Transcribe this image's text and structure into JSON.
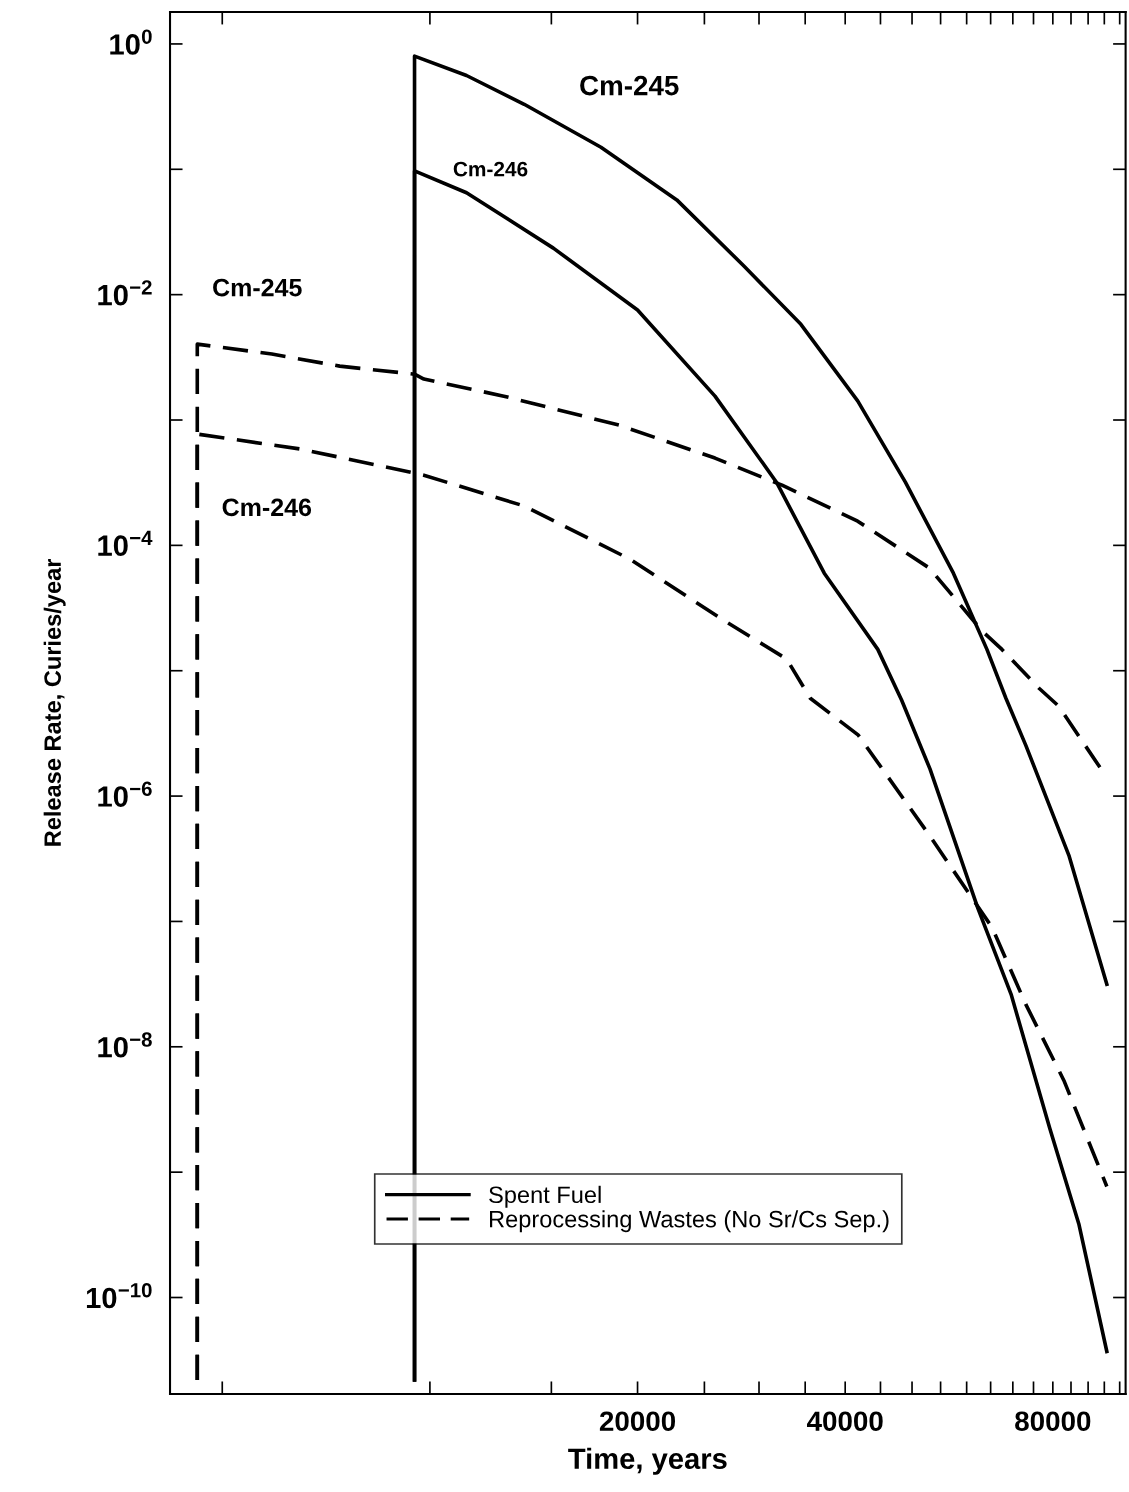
{
  "chart_data": {
    "type": "line",
    "xlabel": "Time, years",
    "ylabel": "Release Rate, Curies/year",
    "log": "xy",
    "grid": false,
    "legend": "bottom",
    "marker": "none",
    "xlim": [
      4200,
      102000
    ],
    "ylim": [
      1.7e-11,
      1.8
    ],
    "xticks": [
      {
        "value": 5000,
        "label": null
      },
      {
        "value": 10000,
        "label": null
      },
      {
        "value": 15000,
        "label": null
      },
      20000,
      {
        "value": 25000,
        "label": null
      },
      {
        "value": 30000,
        "label": null
      },
      {
        "value": 35000,
        "label": null
      },
      40000,
      {
        "value": 45000,
        "label": null
      },
      {
        "value": 50000,
        "label": null
      },
      {
        "value": 55000,
        "label": null
      },
      {
        "value": 60000,
        "label": null
      },
      {
        "value": 65000,
        "label": null
      },
      {
        "value": 70000,
        "label": null
      },
      {
        "value": 75000,
        "label": null
      },
      80000,
      {
        "value": 85000,
        "label": null
      },
      {
        "value": 90000,
        "label": null
      },
      {
        "value": 95000,
        "label": null
      },
      {
        "value": 100000,
        "label": null
      }
    ],
    "yticks": [
      {
        "value": 1,
        "label": "10$^{0}$"
      },
      {
        "value": 0.1,
        "label": null
      },
      {
        "value": 0.01,
        "label": "10$^{−2}$"
      },
      {
        "value": 0.001,
        "label": null
      },
      {
        "value": 0.0001,
        "label": "10$^{−4}$"
      },
      {
        "value": 1e-05,
        "label": null
      },
      {
        "value": 1e-06,
        "label": "10$^{−6}$"
      },
      {
        "value": 1e-07,
        "label": null
      },
      {
        "value": 1e-08,
        "label": "10$^{−8}$"
      },
      {
        "value": 1e-09,
        "label": null
      },
      {
        "value": 1e-10,
        "label": "10$^{−10}$"
      }
    ],
    "series": [
      {
        "name": "Spent Fuel",
        "color": "#000000",
        "line_style": "solid",
        "x": [
          9500,
          9500,
          11300,
          13700,
          17700,
          22800,
          28500,
          34500,
          41700,
          48900,
          57400,
          64200,
          68400,
          73100,
          84400,
          95800
        ],
        "values": [
          2.2e-11,
          0.8,
          0.56,
          0.33,
          0.15,
          0.057,
          0.017,
          0.0058,
          0.00142,
          0.000319,
          6e-05,
          1.48e-05,
          6.03e-06,
          2.54e-06,
          3.37e-07,
          3.15e-08
        ]
      },
      {
        "color": "#000000",
        "line_style": "solid",
        "x": [
          9500,
          9500,
          11300,
          15100,
          20000,
          25900,
          31800,
          37300,
          44600,
          48300,
          53100,
          62300,
          69600,
          79200,
          87300,
          95800
        ],
        "values": [
          2.2e-11,
          0.097,
          0.065,
          0.0235,
          0.00754,
          0.00155,
          0.000319,
          6e-05,
          1.48e-05,
          5.82e-06,
          1.64e-06,
          1.27e-07,
          2.62e-08,
          2.23e-09,
          3.82e-10,
          3.71e-11
        ]
      },
      {
        "name": "Reprocessing Wastes (No Sr/Cs Sep.)",
        "color": "#000000",
        "line_style": "dashed",
        "x": [
          4600,
          4600,
          5900,
          7400,
          9500,
          9800,
          12800,
          18800,
          25900,
          32400,
          41700,
          53000,
          63200,
          67500,
          76400,
          81600,
          95100
        ],
        "values": [
          2.2e-11,
          0.00403,
          0.00336,
          0.00269,
          0.00232,
          0.00212,
          0.00155,
          0.00091,
          0.000497,
          0.000302,
          0.000156,
          6.58e-05,
          2.07e-05,
          1.48e-05,
          7.25e-06,
          5.21e-06,
          1.49e-06
        ]
      },
      {
        "color": "#000000",
        "line_style": "dashed",
        "x": [
          4600,
          4600,
          6500,
          9500,
          9800,
          13700,
          19500,
          26800,
          32900,
          35600,
          41800,
          53100,
          65300,
          73100,
          83000,
          95800
        ],
        "values": [
          2.2e-11,
          0.000772,
          0.000586,
          0.000377,
          0.000363,
          0.000206,
          7.76e-05,
          2.48e-05,
          1.24e-05,
          6.03e-06,
          3.06e-06,
          4.78e-07,
          8.97e-08,
          2.18e-08,
          5.39e-09,
          7.69e-10
        ]
      }
    ],
    "annotations": [
      "Cm-245",
      "Cm-246",
      "Cm-245",
      "Cm-246"
    ]
  }
}
